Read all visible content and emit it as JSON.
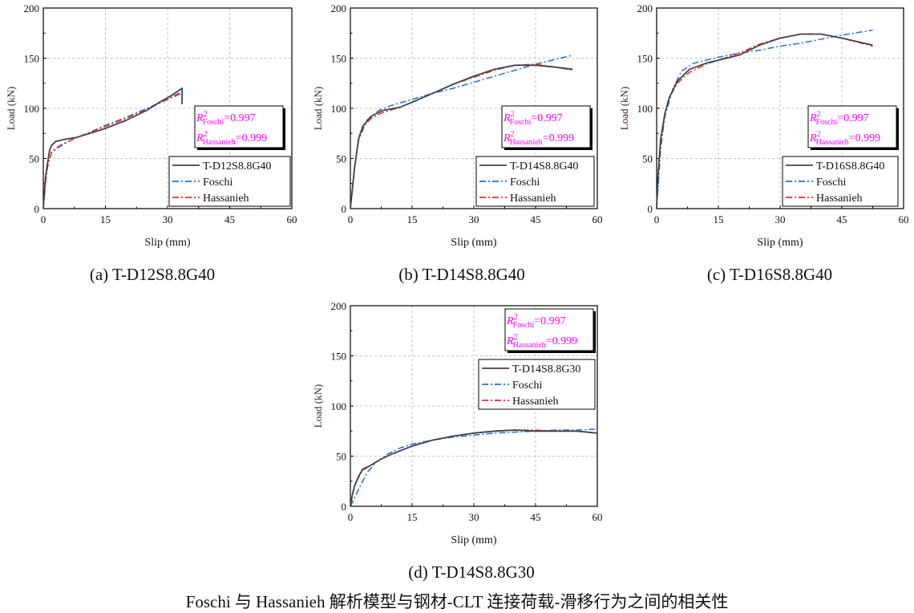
{
  "figure_caption": "Foschi 与 Hassanieh 解析模型与钢材-CLT 连接荷载-滑移行为之间的相关性",
  "colors": {
    "test": "#444444",
    "foschi": "#1f6fe0",
    "hassanieh": "#e8302a",
    "r2_text": "#ff00ff",
    "grid": "#b0b0b0"
  },
  "chart_data": [
    {
      "type": "line",
      "caption": "(a) T-D12S8.8G40",
      "xlabel": "Slip (mm)",
      "ylabel": "Load (kN)",
      "xlim": [
        0,
        60
      ],
      "ylim": [
        0,
        200
      ],
      "xticks": [
        "0",
        "15",
        "30",
        "45",
        "60"
      ],
      "yticks": [
        "0",
        "50",
        "100",
        "150",
        "200"
      ],
      "grid": true,
      "legend": "bottom-right",
      "r2": {
        "foschi_label": "Foschi",
        "foschi_value": "=0.997",
        "hassanieh_label": "Hassanieh",
        "hassanieh_value": "=0.999"
      },
      "series": [
        {
          "name": "T-D12S8.8G40",
          "style": "solid",
          "x": [
            0,
            0.5,
            1,
            1.5,
            2,
            3,
            5,
            8,
            12,
            15,
            20,
            25,
            28,
            31,
            33.5,
            33.5
          ],
          "y": [
            0,
            30,
            45,
            58,
            63,
            67,
            69,
            71,
            76,
            80,
            88,
            98,
            106,
            113,
            120,
            104
          ]
        },
        {
          "name": "Foschi",
          "style": "dashdot",
          "x": [
            0,
            0.5,
            1,
            2,
            4,
            7,
            10,
            15,
            20,
            25,
            30,
            33.5
          ],
          "y": [
            0,
            25,
            42,
            56,
            62,
            69,
            74,
            83,
            91,
            100,
            109,
            115
          ]
        },
        {
          "name": "Hassanieh",
          "style": "dashdot",
          "x": [
            0,
            0.5,
            1,
            2,
            4,
            7,
            10,
            15,
            20,
            25,
            30,
            33.5
          ],
          "y": [
            0,
            24,
            41,
            57,
            63,
            69,
            74,
            82,
            90,
            99,
            109,
            117
          ]
        }
      ]
    },
    {
      "type": "line",
      "caption": "(b) T-D14S8.8G40",
      "xlabel": "Slip (mm)",
      "ylabel": "Load (kN)",
      "xlim": [
        0,
        60
      ],
      "ylim": [
        0,
        200
      ],
      "xticks": [
        "0",
        "15",
        "30",
        "45",
        "60"
      ],
      "yticks": [
        "0",
        "50",
        "100",
        "150",
        "200"
      ],
      "grid": true,
      "legend": "bottom-right",
      "r2": {
        "foschi_label": "Foschi",
        "foschi_value": "=0.997",
        "hassanieh_label": "Hassanieh",
        "hassanieh_value": "=0.999"
      },
      "series": [
        {
          "name": "T-D14S8.8G40",
          "style": "solid",
          "x": [
            0,
            0.5,
            1,
            2,
            3,
            5,
            8,
            12,
            15,
            20,
            25,
            30,
            35,
            40,
            45,
            50,
            54
          ],
          "y": [
            0,
            20,
            40,
            70,
            82,
            92,
            98,
            101,
            106,
            115,
            124,
            132,
            139,
            143,
            143,
            141,
            139
          ]
        },
        {
          "name": "Foschi",
          "style": "dashdot",
          "x": [
            0,
            1,
            2,
            4,
            7,
            10,
            15,
            20,
            25,
            30,
            35,
            40,
            45,
            50,
            54
          ],
          "y": [
            0,
            40,
            68,
            88,
            98,
            103,
            109,
            115,
            120,
            126,
            132,
            138,
            144,
            149,
            153
          ]
        },
        {
          "name": "Hassanieh",
          "style": "dashdot",
          "x": [
            0,
            0.5,
            1,
            2,
            3,
            5,
            8,
            12,
            15,
            20,
            25,
            30,
            35,
            40,
            45,
            50,
            54
          ],
          "y": [
            0,
            20,
            40,
            69,
            81,
            90,
            96,
            101,
            106,
            115,
            124,
            131,
            138,
            143,
            144,
            141,
            138
          ]
        }
      ]
    },
    {
      "type": "line",
      "caption": "(c) T-D16S8.8G40",
      "xlabel": "Slip (mm)",
      "ylabel": "Load (kN)",
      "xlim": [
        0,
        60
      ],
      "ylim": [
        0,
        200
      ],
      "xticks": [
        "0",
        "15",
        "30",
        "45",
        "60"
      ],
      "yticks": [
        "0",
        "50",
        "100",
        "150",
        "200"
      ],
      "grid": true,
      "legend": "bottom-right",
      "r2": {
        "foschi_label": "Foschi",
        "foschi_value": "=0.997",
        "hassanieh_label": "Hassanieh",
        "hassanieh_value": "=0.999"
      },
      "series": [
        {
          "name": "T-D16S8.8G40",
          "style": "solid",
          "x": [
            0,
            0.3,
            1,
            2,
            3,
            5,
            8,
            12,
            15,
            20,
            25,
            30,
            35,
            40,
            45,
            52.5
          ],
          "y": [
            0,
            30,
            70,
            95,
            110,
            127,
            139,
            145,
            148,
            153,
            163,
            170,
            174,
            174,
            170,
            163
          ]
        },
        {
          "name": "Foschi",
          "style": "dashdot",
          "x": [
            0,
            1,
            2,
            4,
            6,
            9,
            15,
            20,
            25,
            30,
            35,
            40,
            45,
            52.5
          ],
          "y": [
            0,
            60,
            92,
            120,
            137,
            145,
            151,
            155,
            158,
            162,
            165,
            169,
            173,
            178
          ]
        },
        {
          "name": "Hassanieh",
          "style": "dashdot",
          "x": [
            0,
            0.3,
            1,
            2,
            3,
            5,
            8,
            12,
            15,
            20,
            25,
            30,
            35,
            40,
            45,
            52.5
          ],
          "y": [
            0,
            28,
            68,
            94,
            110,
            125,
            136,
            144,
            148,
            155,
            164,
            170,
            174,
            174,
            170,
            162
          ]
        }
      ]
    },
    {
      "type": "line",
      "caption": "(d) T-D14S8.8G30",
      "xlabel": "Slip (mm)",
      "ylabel": "Load (kN)",
      "xlim": [
        0,
        60
      ],
      "ylim": [
        0,
        200
      ],
      "xticks": [
        "0",
        "15",
        "30",
        "45",
        "60"
      ],
      "yticks": [
        "0",
        "50",
        "100",
        "150",
        "200"
      ],
      "grid": true,
      "legend": "top-right",
      "r2": {
        "foschi_label": "Foschi",
        "foschi_value": "=0.997",
        "hassanieh_label": "Hassanieh",
        "hassanieh_value": "=0.999"
      },
      "series": [
        {
          "name": "T-D14S8.8G30",
          "style": "solid",
          "x": [
            0,
            0.5,
            1,
            2,
            3,
            5,
            7,
            10,
            15,
            20,
            25,
            30,
            35,
            40,
            45,
            50,
            55,
            60
          ],
          "y": [
            0,
            12,
            20,
            30,
            37,
            41,
            46,
            52,
            60,
            66,
            70,
            73,
            75,
            76,
            75,
            75,
            75,
            73
          ]
        },
        {
          "name": "Foschi",
          "style": "dashdot",
          "x": [
            0,
            1,
            2,
            4,
            6,
            9,
            12,
            15,
            20,
            25,
            30,
            35,
            40,
            45,
            50,
            55,
            60
          ],
          "y": [
            0,
            8,
            17,
            33,
            43,
            52,
            58,
            62,
            66,
            69,
            71,
            73,
            74,
            75,
            76,
            76,
            77
          ]
        },
        {
          "name": "Hassanieh",
          "style": "dashdot",
          "x": [
            0,
            0.5,
            1,
            2,
            3,
            5,
            7,
            10,
            15,
            20,
            25,
            30,
            35,
            40,
            45,
            50,
            55,
            60
          ],
          "y": [
            0,
            11,
            19,
            29,
            36,
            41,
            46,
            52,
            60,
            66,
            70,
            73,
            75,
            76,
            76,
            75,
            75,
            73
          ]
        }
      ]
    }
  ]
}
